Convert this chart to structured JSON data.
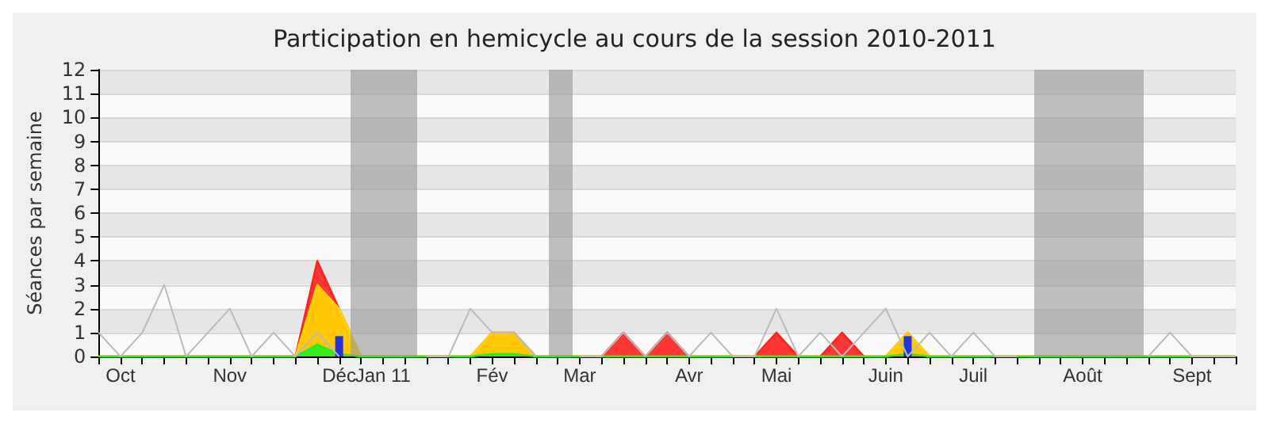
{
  "chart_data": {
    "type": "area",
    "title": "Participation en hemicycle au cours de la session 2010-2011",
    "ylabel": "Séances par semaine",
    "categories": [
      null,
      "Oct",
      null,
      null,
      null,
      null,
      "Nov",
      null,
      null,
      null,
      null,
      "Déc",
      null,
      "Jan 11",
      null,
      null,
      null,
      null,
      "Fév",
      null,
      null,
      null,
      "Mar",
      null,
      null,
      null,
      null,
      "Avr",
      null,
      null,
      null,
      "Mai",
      null,
      null,
      null,
      null,
      "Juin",
      null,
      null,
      null,
      "Juil",
      null,
      null,
      null,
      null,
      "Août",
      null,
      null,
      null,
      null,
      "Sept",
      null,
      null
    ],
    "series": [
      {
        "type": "line",
        "color": "#bbbbbb",
        "values": [
          1,
          0,
          1,
          3,
          0,
          1,
          2,
          0,
          1,
          0,
          1,
          0,
          null,
          null,
          null,
          0,
          0,
          2,
          1,
          1,
          0,
          null,
          0,
          0,
          1,
          0,
          1,
          0,
          1,
          0,
          0,
          2,
          0,
          1,
          0,
          1,
          2,
          0,
          1,
          0,
          1,
          0,
          0,
          null,
          null,
          null,
          null,
          null,
          0,
          1,
          0,
          0,
          0
        ]
      },
      {
        "color": "#ff2020",
        "values": [
          0,
          0,
          0,
          0,
          0,
          0,
          0,
          0,
          0,
          0,
          4,
          2,
          0,
          0,
          0,
          0,
          0,
          0,
          1,
          1,
          0,
          0,
          0,
          0,
          1,
          0,
          1,
          0,
          0,
          0,
          0,
          1,
          0,
          0,
          1,
          0,
          0,
          1,
          0,
          0,
          0,
          0,
          0,
          0,
          0,
          0,
          0,
          0,
          0,
          0,
          0,
          0,
          0
        ]
      },
      {
        "color": "#ffd700",
        "values": [
          0,
          0,
          0,
          0,
          0,
          0,
          0,
          0,
          0,
          0,
          3,
          2,
          0,
          0,
          0,
          0,
          0,
          0,
          1,
          1,
          0,
          0,
          0,
          0,
          0,
          0,
          0,
          0,
          0,
          0,
          0,
          0,
          0,
          0,
          0,
          0,
          0,
          1,
          0,
          0,
          0,
          0,
          0,
          0,
          0,
          0,
          0,
          0,
          0,
          0,
          0,
          0,
          0
        ]
      },
      {
        "color": "#22ee22",
        "values": [
          0,
          0,
          0,
          0,
          0,
          0,
          0,
          0,
          0,
          0,
          0.5,
          0.1,
          0,
          0,
          0,
          0,
          0,
          0,
          0.1,
          0.1,
          0,
          0,
          0,
          0,
          0,
          0,
          0,
          0,
          0,
          0,
          0,
          0,
          0,
          0,
          0,
          0,
          0,
          0.1,
          0,
          0,
          0,
          0,
          0,
          0,
          0,
          0,
          0,
          0,
          0,
          0,
          0,
          0,
          0
        ]
      },
      {
        "type": "bar",
        "color": "#2233dd",
        "values": [
          null,
          null,
          null,
          null,
          null,
          null,
          null,
          null,
          null,
          null,
          null,
          0.85,
          null,
          null,
          null,
          null,
          null,
          null,
          null,
          null,
          null,
          null,
          null,
          null,
          null,
          null,
          null,
          null,
          null,
          null,
          null,
          null,
          null,
          null,
          null,
          null,
          null,
          0.85,
          null,
          null,
          null,
          null,
          null,
          null,
          null,
          null,
          null,
          null,
          null,
          null,
          null,
          null,
          null
        ]
      }
    ],
    "ylim": [
      0,
      12
    ],
    "yticks": [
      0,
      1,
      2,
      3,
      4,
      5,
      6,
      7,
      8,
      9,
      10,
      11,
      12
    ],
    "grid": "y",
    "marker": "none",
    "line_style": "solid"
  }
}
